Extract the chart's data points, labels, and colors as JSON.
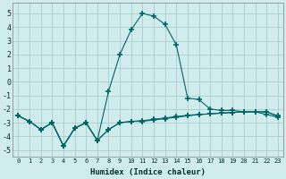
{
  "xlabel": "Humidex (Indice chaleur)",
  "x": [
    0,
    1,
    2,
    3,
    4,
    5,
    6,
    7,
    8,
    9,
    10,
    11,
    12,
    13,
    14,
    15,
    16,
    17,
    18,
    19,
    20,
    21,
    22,
    23
  ],
  "line1": [
    -2.5,
    -2.9,
    -3.5,
    -3.0,
    -4.7,
    -3.4,
    -3.0,
    -4.3,
    -0.7,
    2.0,
    3.8,
    5.0,
    4.8,
    4.2,
    2.7,
    -1.2,
    -1.3,
    -2.0,
    -2.1,
    -2.1,
    -2.2,
    -2.2,
    -2.4,
    -2.6
  ],
  "line2": [
    -2.5,
    -2.9,
    -3.5,
    -3.0,
    -4.7,
    -3.4,
    -3.0,
    -4.3,
    -3.5,
    -3.0,
    -2.9,
    -2.9,
    -2.8,
    -2.7,
    -2.6,
    -2.5,
    -2.4,
    -2.35,
    -2.3,
    -2.25,
    -2.2,
    -2.2,
    -2.2,
    -2.5
  ],
  "line3": [
    -2.5,
    -2.9,
    -3.5,
    -3.0,
    -4.7,
    -3.4,
    -3.0,
    -4.3,
    -3.5,
    -3.0,
    -2.9,
    -2.85,
    -2.75,
    -2.65,
    -2.55,
    -2.45,
    -2.4,
    -2.35,
    -2.3,
    -2.25,
    -2.2,
    -2.2,
    -2.2,
    -2.55
  ],
  "line_color": "#006666",
  "bg_color": "#d0ecec",
  "grid_color": "#a8cccc",
  "ylim": [
    -5.5,
    5.8
  ],
  "yticks": [
    -5,
    -4,
    -3,
    -2,
    -1,
    0,
    1,
    2,
    3,
    4,
    5
  ],
  "xticks": [
    0,
    1,
    2,
    3,
    4,
    5,
    6,
    7,
    8,
    9,
    10,
    11,
    12,
    13,
    14,
    15,
    16,
    17,
    18,
    19,
    20,
    21,
    22,
    23
  ]
}
